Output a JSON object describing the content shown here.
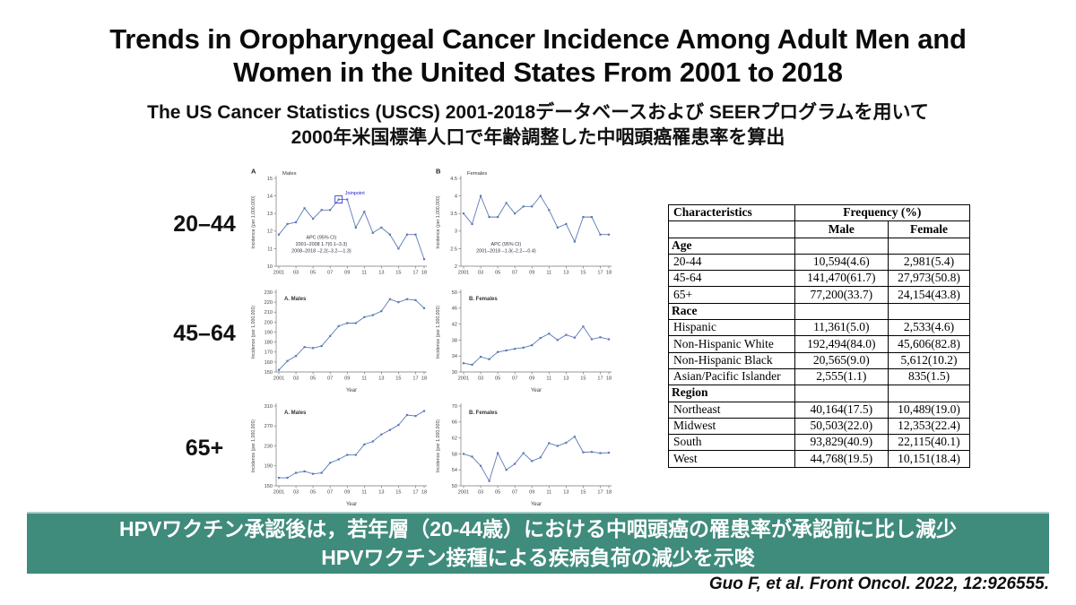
{
  "slide": {
    "title": "Trends in Oropharyngeal Cancer Incidence Among Adult Men and Women in the United States From 2001 to 2018",
    "subtitle_line1": "The US Cancer Statistics (USCS) 2001-2018データベースおよび SEERプログラムを用いて",
    "subtitle_line2": "2000年米国標準人口で年齢調整した中咽頭癌罹患率を算出",
    "age_group_labels": [
      "20–44",
      "45–64",
      "65+"
    ],
    "banner": {
      "line1": "HPVワクチン承認後は，若年層（20-44歳）における中咽頭癌の罹患率が承認前に比し減少",
      "line2": "HPVワクチン接種による疾病負荷の減少を示唆",
      "background_color": "#3f8b7c",
      "text_color": "#ffffff"
    },
    "citation": "Guo F, et al. Front Oncol. 2022, 12:926555."
  },
  "table": {
    "col1_header": "Characteristics",
    "group_header": "Frequency (%)",
    "sub_headers": [
      "Male",
      "Female"
    ],
    "rows": [
      {
        "label": "Age",
        "male": "",
        "female": "",
        "section": true
      },
      {
        "label": "20-44",
        "male": "10,594(4.6)",
        "female": "2,981(5.4)"
      },
      {
        "label": "45-64",
        "male": "141,470(61.7)",
        "female": "27,973(50.8)"
      },
      {
        "label": "65+",
        "male": "77,200(33.7)",
        "female": "24,154(43.8)"
      },
      {
        "label": "Race",
        "male": "",
        "female": "",
        "section": true
      },
      {
        "label": "Hispanic",
        "male": "11,361(5.0)",
        "female": "2,533(4.6)"
      },
      {
        "label": "Non-Hispanic White",
        "male": "192,494(84.0)",
        "female": "45,606(82.8)"
      },
      {
        "label": "Non-Hispanic Black",
        "male": "20,565(9.0)",
        "female": "5,612(10.2)"
      },
      {
        "label": "Asian/Pacific Islander",
        "male": "2,555(1.1)",
        "female": "835(1.5)"
      },
      {
        "label": "Region",
        "male": "",
        "female": "",
        "section": true
      },
      {
        "label": "Northeast",
        "male": "40,164(17.5)",
        "female": "10,489(19.0)"
      },
      {
        "label": "Midwest",
        "male": "50,503(22.0)",
        "female": "12,353(22.4)"
      },
      {
        "label": "South",
        "male": "93,829(40.9)",
        "female": "22,115(40.1)"
      },
      {
        "label": "West",
        "male": "44,768(19.5)",
        "female": "10,151(18.4)"
      }
    ]
  },
  "colors": {
    "line": "#5b79b5",
    "joinpoint": "#2323c8",
    "axis": "#777777",
    "tick_text": "#444444"
  },
  "chart_data": [
    {
      "id": "males-20-44",
      "type": "line",
      "panel": "A",
      "title": "Males",
      "title_inside": false,
      "ylabel": "Incidence (per 1,000,000)",
      "xlabel": "",
      "ylim": [
        10,
        15
      ],
      "yticks": [
        10,
        11,
        12,
        13,
        14,
        15
      ],
      "x": [
        2001,
        2002,
        2003,
        2004,
        2005,
        2006,
        2007,
        2008,
        2009,
        2010,
        2011,
        2012,
        2013,
        2014,
        2015,
        2016,
        2017,
        2018
      ],
      "values": [
        11.8,
        12.4,
        12.5,
        13.3,
        12.7,
        13.2,
        13.2,
        13.8,
        13.8,
        12.2,
        13.1,
        11.9,
        12.2,
        11.8,
        11.0,
        11.8,
        11.8,
        10.4
      ],
      "joinpoint": {
        "year": 2008,
        "label": "Joinpoint"
      },
      "annotation": [
        "APC (95% CI)",
        "2001–2008  1.7(0.1–3.3)",
        "2008–2018  –2.2(–3.2––1.3)"
      ]
    },
    {
      "id": "females-20-44",
      "type": "line",
      "panel": "B",
      "title": "Females",
      "title_inside": false,
      "ylabel": "Incidence (per 1,000,000)",
      "xlabel": "",
      "ylim": [
        2,
        4.5
      ],
      "yticks": [
        2,
        2.5,
        3,
        3.5,
        4,
        4.5
      ],
      "x": [
        2001,
        2002,
        2003,
        2004,
        2005,
        2006,
        2007,
        2008,
        2009,
        2010,
        2011,
        2012,
        2013,
        2014,
        2015,
        2016,
        2017,
        2018
      ],
      "values": [
        3.5,
        3.2,
        4.0,
        3.4,
        3.4,
        3.8,
        3.5,
        3.7,
        3.7,
        4.0,
        3.6,
        3.1,
        3.2,
        2.7,
        3.4,
        3.4,
        2.9,
        2.9
      ],
      "annotation": [
        "APC (95% CI)",
        "2001–2018  –1.3(–2.2––0.4)"
      ]
    },
    {
      "id": "males-45-64",
      "type": "line",
      "title": "A. Males",
      "title_inside": true,
      "ylabel": "Incidence (per 1,000,000)",
      "xlabel": "Year",
      "ylim": [
        150,
        230
      ],
      "yticks": [
        150,
        160,
        170,
        180,
        190,
        200,
        210,
        220,
        230
      ],
      "x": [
        2001,
        2002,
        2003,
        2004,
        2005,
        2006,
        2007,
        2008,
        2009,
        2010,
        2011,
        2012,
        2013,
        2014,
        2015,
        2016,
        2017,
        2018
      ],
      "values": [
        152,
        161,
        166,
        175,
        174,
        176,
        186,
        196,
        199,
        199,
        205,
        207,
        211,
        223,
        220,
        223,
        222,
        214
      ]
    },
    {
      "id": "females-45-64",
      "type": "line",
      "title": "B. Females",
      "title_inside": true,
      "ylabel": "Incidence (per 1,000,000)",
      "xlabel": "Year",
      "ylim": [
        30,
        50
      ],
      "yticks": [
        30,
        34,
        38,
        42,
        46,
        50
      ],
      "x": [
        2001,
        2002,
        2003,
        2004,
        2005,
        2006,
        2007,
        2008,
        2009,
        2010,
        2011,
        2012,
        2013,
        2014,
        2015,
        2016,
        2017,
        2018
      ],
      "values": [
        32.2,
        31.8,
        33.8,
        33.2,
        35.0,
        35.4,
        35.8,
        36.1,
        36.7,
        38.5,
        39.6,
        38.0,
        39.3,
        38.6,
        41.4,
        38.2,
        38.7,
        38.2
      ]
    },
    {
      "id": "males-65plus",
      "type": "line",
      "title": "A. Males",
      "title_inside": true,
      "ylabel": "Incidence (per 1,000,000)",
      "xlabel": "Year",
      "ylim": [
        150,
        310
      ],
      "yticks": [
        150,
        190,
        230,
        270,
        310
      ],
      "x": [
        2001,
        2002,
        2003,
        2004,
        2005,
        2006,
        2007,
        2008,
        2009,
        2010,
        2011,
        2012,
        2013,
        2014,
        2015,
        2016,
        2017,
        2018
      ],
      "values": [
        166,
        166,
        176,
        179,
        174,
        176,
        196,
        203,
        212,
        212,
        233,
        239,
        253,
        262,
        272,
        292,
        290,
        300
      ]
    },
    {
      "id": "females-65plus",
      "type": "line",
      "title": "B. Females",
      "title_inside": true,
      "ylabel": "Incidence (per 1,000,000)",
      "xlabel": "Year",
      "ylim": [
        50,
        70
      ],
      "yticks": [
        50,
        54,
        58,
        62,
        66,
        70
      ],
      "x": [
        2001,
        2002,
        2003,
        2004,
        2005,
        2006,
        2007,
        2008,
        2009,
        2010,
        2011,
        2012,
        2013,
        2014,
        2015,
        2016,
        2017,
        2018
      ],
      "values": [
        58.0,
        57.3,
        55.0,
        51.2,
        58.2,
        54.0,
        55.5,
        58.2,
        56.2,
        57.1,
        60.7,
        60.0,
        60.8,
        62.3,
        58.4,
        58.5,
        58.2,
        58.3
      ]
    }
  ]
}
